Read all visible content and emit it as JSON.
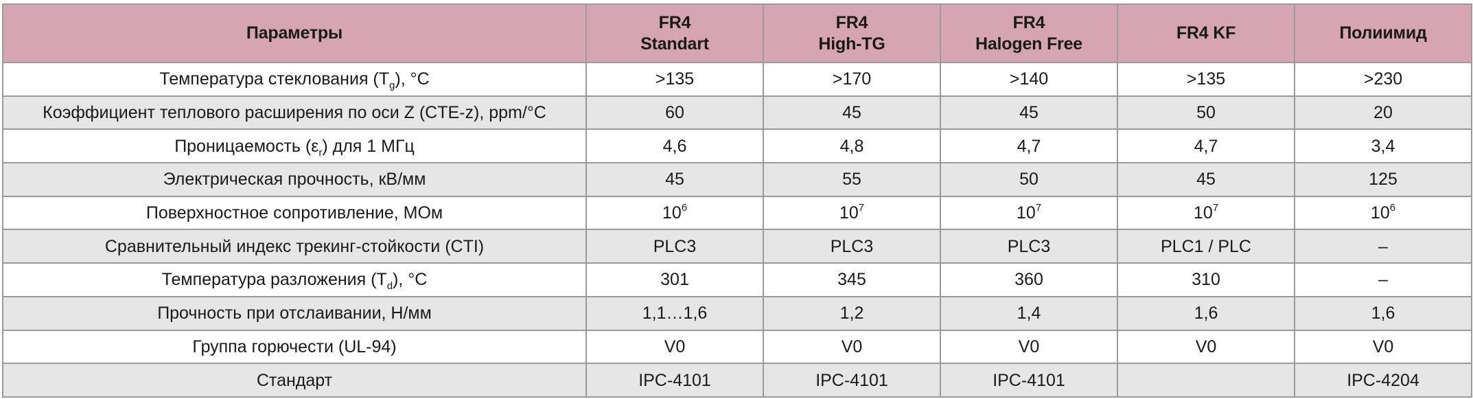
{
  "table": {
    "header": {
      "parameters_label": "Параметры",
      "columns": [
        {
          "line1": "FR4",
          "line2": "Standart"
        },
        {
          "line1": "FR4",
          "line2": "High-TG"
        },
        {
          "line1": "FR4",
          "line2": "Halogen Free"
        },
        {
          "line1": "FR4 KF",
          "line2": ""
        },
        {
          "line1": "Полиимид",
          "line2": ""
        }
      ]
    },
    "rows": [
      {
        "param": {
          "before": "Температура стеклования (T",
          "sub": "g",
          "after": "), °C"
        },
        "values": [
          {
            "base": ">135",
            "sup": ""
          },
          {
            "base": ">170",
            "sup": ""
          },
          {
            "base": ">140",
            "sup": ""
          },
          {
            "base": ">135",
            "sup": ""
          },
          {
            "base": ">230",
            "sup": ""
          }
        ]
      },
      {
        "param": {
          "before": "Коэффициент теплового расширения по оси Z (CTE-z), ppm/°C",
          "sub": "",
          "after": ""
        },
        "values": [
          {
            "base": "60",
            "sup": ""
          },
          {
            "base": "45",
            "sup": ""
          },
          {
            "base": "45",
            "sup": ""
          },
          {
            "base": "50",
            "sup": ""
          },
          {
            "base": "20",
            "sup": ""
          }
        ]
      },
      {
        "param": {
          "before": "Проницаемость (ε",
          "sub": "r",
          "after": ") для 1 МГц"
        },
        "values": [
          {
            "base": "4,6",
            "sup": ""
          },
          {
            "base": "4,8",
            "sup": ""
          },
          {
            "base": "4,7",
            "sup": ""
          },
          {
            "base": "4,7",
            "sup": ""
          },
          {
            "base": "3,4",
            "sup": ""
          }
        ]
      },
      {
        "param": {
          "before": "Электрическая прочность, кВ/мм",
          "sub": "",
          "after": ""
        },
        "values": [
          {
            "base": "45",
            "sup": ""
          },
          {
            "base": "55",
            "sup": ""
          },
          {
            "base": "50",
            "sup": ""
          },
          {
            "base": "45",
            "sup": ""
          },
          {
            "base": "125",
            "sup": ""
          }
        ]
      },
      {
        "param": {
          "before": "Поверхностное сопротивление, МОм",
          "sub": "",
          "after": ""
        },
        "values": [
          {
            "base": "10",
            "sup": "6"
          },
          {
            "base": "10",
            "sup": "7"
          },
          {
            "base": "10",
            "sup": "7"
          },
          {
            "base": "10",
            "sup": "7"
          },
          {
            "base": "10",
            "sup": "6"
          }
        ]
      },
      {
        "param": {
          "before": "Сравнительный индекс трекинг-стойкости (CTI)",
          "sub": "",
          "after": ""
        },
        "values": [
          {
            "base": "PLC3",
            "sup": ""
          },
          {
            "base": "PLC3",
            "sup": ""
          },
          {
            "base": "PLC3",
            "sup": ""
          },
          {
            "base": "PLC1 / PLC",
            "sup": ""
          },
          {
            "base": "–",
            "sup": ""
          }
        ]
      },
      {
        "param": {
          "before": "Температура разложения (T",
          "sub": "d",
          "after": "), °C"
        },
        "values": [
          {
            "base": "301",
            "sup": ""
          },
          {
            "base": "345",
            "sup": ""
          },
          {
            "base": "360",
            "sup": ""
          },
          {
            "base": "310",
            "sup": ""
          },
          {
            "base": "–",
            "sup": ""
          }
        ]
      },
      {
        "param": {
          "before": "Прочность при отслаивании, Н/мм",
          "sub": "",
          "after": ""
        },
        "values": [
          {
            "base": "1,1…1,6",
            "sup": ""
          },
          {
            "base": "1,2",
            "sup": ""
          },
          {
            "base": "1,4",
            "sup": ""
          },
          {
            "base": "1,6",
            "sup": ""
          },
          {
            "base": "1,6",
            "sup": ""
          }
        ]
      },
      {
        "param": {
          "before": "Группа горючести (UL-94)",
          "sub": "",
          "after": ""
        },
        "values": [
          {
            "base": "V0",
            "sup": ""
          },
          {
            "base": "V0",
            "sup": ""
          },
          {
            "base": "V0",
            "sup": ""
          },
          {
            "base": "V0",
            "sup": ""
          },
          {
            "base": "V0",
            "sup": ""
          }
        ]
      },
      {
        "param": {
          "before": "Стандарт",
          "sub": "",
          "after": ""
        },
        "values": [
          {
            "base": "IPC-4101",
            "sup": ""
          },
          {
            "base": "IPC-4101",
            "sup": ""
          },
          {
            "base": "IPC-4101",
            "sup": ""
          },
          {
            "base": "",
            "sup": ""
          },
          {
            "base": "IPC-4204",
            "sup": ""
          }
        ]
      }
    ]
  },
  "colors": {
    "header_bg": "#d5a5b3",
    "row_alt_bg": "#e6e6e6",
    "border": "#9a9a9a"
  }
}
